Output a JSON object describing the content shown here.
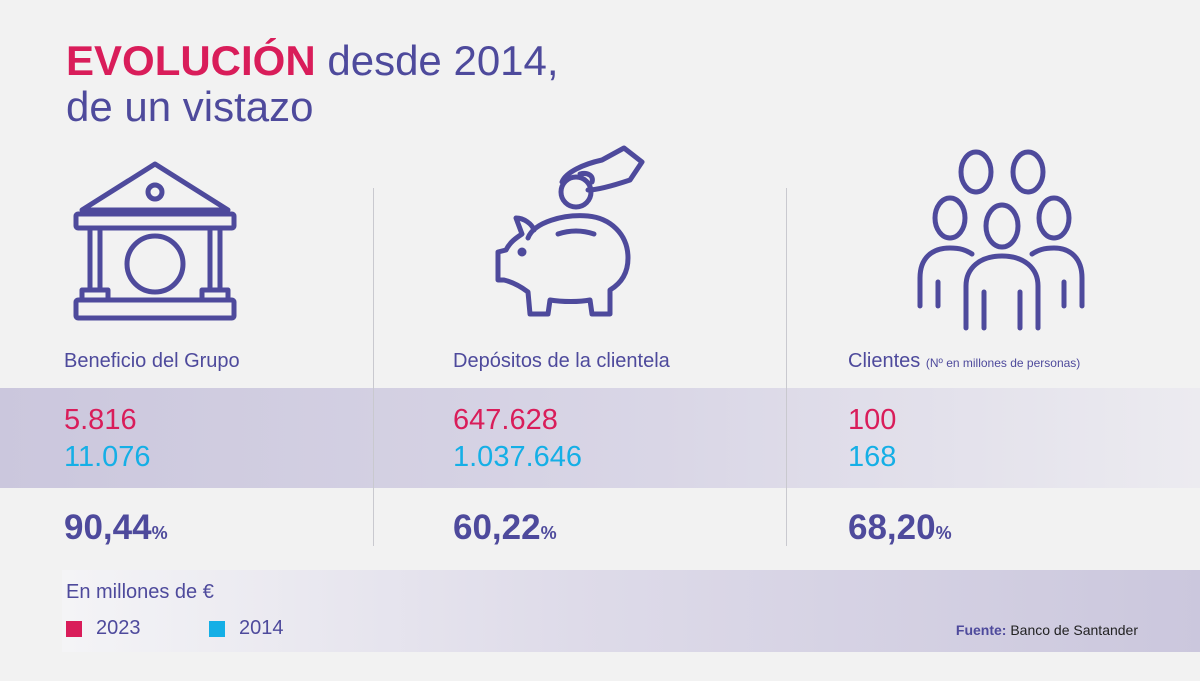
{
  "title": {
    "highlight": "EVOLUCIÓN",
    "rest": " desde 2014,",
    "line2": "de un vistazo"
  },
  "colors": {
    "accent_2023": "#d91d5a",
    "accent_2014": "#15afe6",
    "primary": "#4e4a9c"
  },
  "columns": [
    {
      "icon": "bank-icon",
      "label": "Beneficio del Grupo",
      "label_note": "",
      "value_2023": "5.816",
      "value_2014": "11.076",
      "change": "90,44",
      "change_unit": "%"
    },
    {
      "icon": "piggy-bank-icon",
      "label": "Depósitos de la clientela",
      "label_note": "",
      "value_2023": "647.628",
      "value_2014": "1.037.646",
      "change": "60,22",
      "change_unit": "%"
    },
    {
      "icon": "people-group-icon",
      "label": "Clientes",
      "label_note": "(Nº en millones  de personas)",
      "value_2023": "100",
      "value_2014": "168",
      "change": "68,20",
      "change_unit": "%"
    }
  ],
  "footer": {
    "units": "En millones de €",
    "legend": [
      {
        "label": "2023",
        "color": "#d91d5a"
      },
      {
        "label": "2014",
        "color": "#15afe6"
      }
    ],
    "source_label": "Fuente:",
    "source_value": "Banco de Santander"
  }
}
